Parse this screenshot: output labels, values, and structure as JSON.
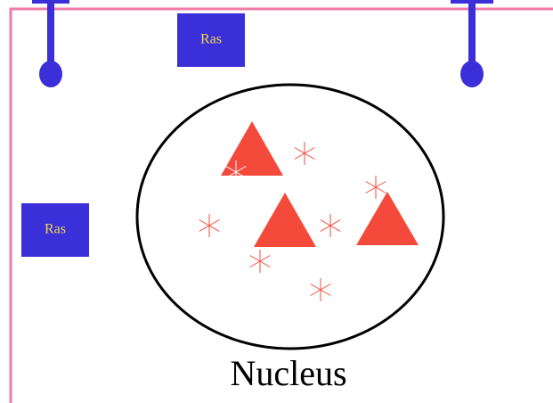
{
  "nodes": [
    {
      "label": "Ras"
    },
    {
      "label": "Ras"
    }
  ],
  "nucleus": {
    "label": "Nucleus"
  }
}
